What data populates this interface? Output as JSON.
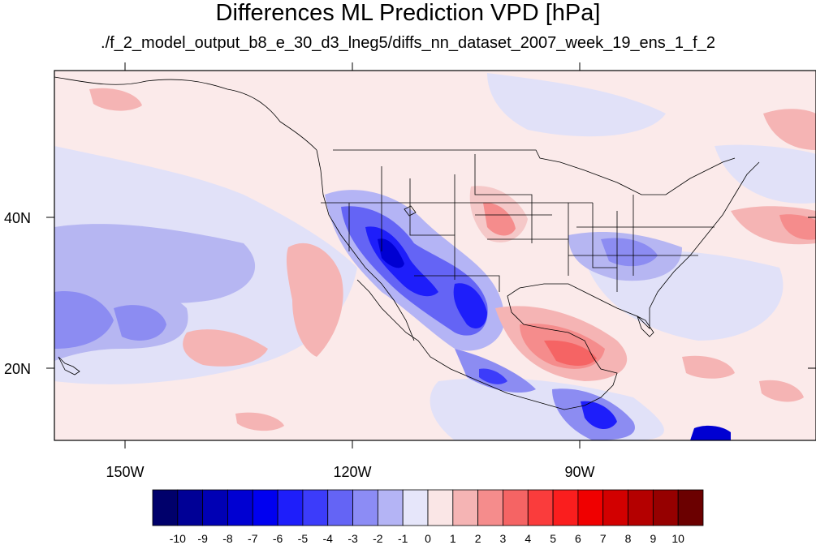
{
  "title": "Differences ML Prediction VPD [hPa]",
  "subtitle": "./f_2_model_output_b8_e_30_d3_lneg5/diffs_nn_dataset_2007_week_19_ens_1_f_2",
  "axes": {
    "lon_labels": [
      "150W",
      "120W",
      "90W"
    ],
    "lat_labels": [
      "40N",
      "20N"
    ]
  },
  "colorbar": {
    "labels": [
      "-10",
      "-9",
      "-8",
      "-7",
      "-6",
      "-5",
      "-4",
      "-3",
      "-2",
      "-1",
      "0",
      "1",
      "2",
      "3",
      "4",
      "5",
      "6",
      "7",
      "8",
      "9",
      "10"
    ],
    "colors": [
      "#00006b",
      "#000096",
      "#0000b4",
      "#0000d2",
      "#0000f0",
      "#1e1efa",
      "#3c3cfa",
      "#6464f5",
      "#8c8cf5",
      "#b4b4f5",
      "#e6e6fa",
      "#fae6e6",
      "#f5b4b4",
      "#f58c8c",
      "#f56464",
      "#fa3c3c",
      "#fa1e1e",
      "#f00000",
      "#d20000",
      "#b40000",
      "#960000",
      "#6b0000"
    ]
  },
  "colors": {
    "land_border": "#000000",
    "background_tint": "#fbeaea"
  }
}
